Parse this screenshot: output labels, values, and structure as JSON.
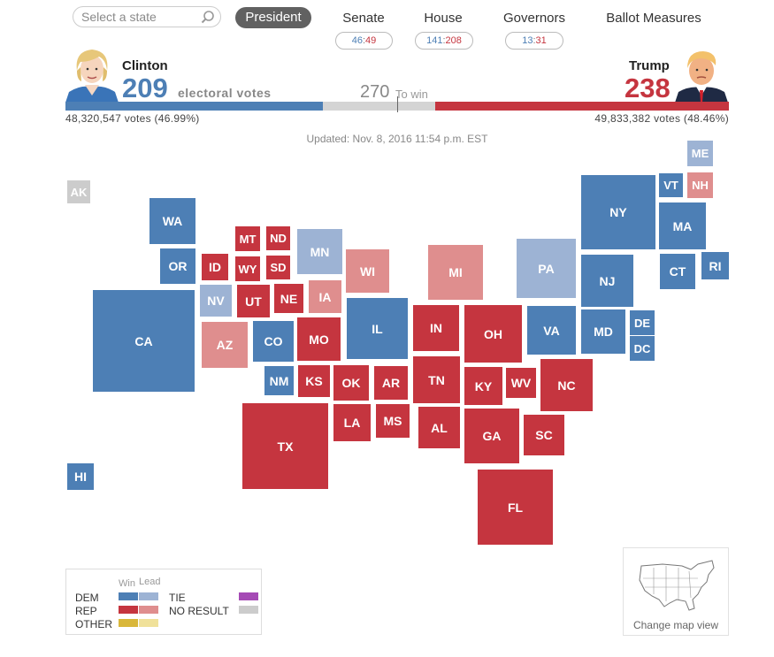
{
  "search": {
    "placeholder": "Select a state"
  },
  "tabs": {
    "president": "President",
    "senate": {
      "label": "Senate",
      "dem": "46",
      "rep": "49"
    },
    "house": {
      "label": "House",
      "dem": "141",
      "rep": "208"
    },
    "governors": {
      "label": "Governors",
      "dem": "13",
      "rep": "31"
    },
    "ballot": "Ballot Measures"
  },
  "clinton": {
    "name": "Clinton",
    "ev": "209",
    "popular": "48,320,547 votes (46.99%)"
  },
  "trump": {
    "name": "Trump",
    "ev": "238",
    "popular": "49,833,382 votes (48.46%)"
  },
  "ev_label": "electoral votes",
  "to_win": {
    "number": "270",
    "label": "To win"
  },
  "bar": {
    "dem_ev": 209,
    "rep_ev": 238,
    "total_ev": 538
  },
  "updated": "Updated: Nov. 8, 2016 11:54 p.m. EST",
  "colors": {
    "dem_win": "#4d7fb5",
    "dem_lead": "#9db3d4",
    "rep_win": "#c5353f",
    "rep_lead": "#df8e8e",
    "other_win": "#d9b73a",
    "other_lead": "#f0e19a",
    "tie": "#a54ab5",
    "no_result": "#cccccc"
  },
  "states": [
    {
      "abbr": "AK",
      "status": "no_result"
    },
    {
      "abbr": "HI",
      "status": "dem_win"
    },
    {
      "abbr": "WA",
      "status": "dem_win"
    },
    {
      "abbr": "OR",
      "status": "dem_win"
    },
    {
      "abbr": "CA",
      "status": "dem_win"
    },
    {
      "abbr": "NV",
      "status": "dem_lead"
    },
    {
      "abbr": "ID",
      "status": "rep_win"
    },
    {
      "abbr": "MT",
      "status": "rep_win"
    },
    {
      "abbr": "WY",
      "status": "rep_win"
    },
    {
      "abbr": "UT",
      "status": "rep_win"
    },
    {
      "abbr": "AZ",
      "status": "rep_lead"
    },
    {
      "abbr": "ND",
      "status": "rep_win"
    },
    {
      "abbr": "SD",
      "status": "rep_win"
    },
    {
      "abbr": "NE",
      "status": "rep_win"
    },
    {
      "abbr": "CO",
      "status": "dem_win"
    },
    {
      "abbr": "NM",
      "status": "dem_win"
    },
    {
      "abbr": "KS",
      "status": "rep_win"
    },
    {
      "abbr": "OK",
      "status": "rep_win"
    },
    {
      "abbr": "TX",
      "status": "rep_win"
    },
    {
      "abbr": "MN",
      "status": "dem_lead"
    },
    {
      "abbr": "IA",
      "status": "rep_lead"
    },
    {
      "abbr": "MO",
      "status": "rep_win"
    },
    {
      "abbr": "AR",
      "status": "rep_win"
    },
    {
      "abbr": "LA",
      "status": "rep_win"
    },
    {
      "abbr": "WI",
      "status": "rep_lead"
    },
    {
      "abbr": "IL",
      "status": "dem_win"
    },
    {
      "abbr": "MS",
      "status": "rep_win"
    },
    {
      "abbr": "MI",
      "status": "rep_lead"
    },
    {
      "abbr": "IN",
      "status": "rep_win"
    },
    {
      "abbr": "TN",
      "status": "rep_win"
    },
    {
      "abbr": "AL",
      "status": "rep_win"
    },
    {
      "abbr": "OH",
      "status": "rep_win"
    },
    {
      "abbr": "KY",
      "status": "rep_win"
    },
    {
      "abbr": "GA",
      "status": "rep_win"
    },
    {
      "abbr": "FL",
      "status": "rep_win"
    },
    {
      "abbr": "WV",
      "status": "rep_win"
    },
    {
      "abbr": "PA",
      "status": "dem_lead"
    },
    {
      "abbr": "VA",
      "status": "dem_win"
    },
    {
      "abbr": "NC",
      "status": "rep_win"
    },
    {
      "abbr": "SC",
      "status": "rep_win"
    },
    {
      "abbr": "NY",
      "status": "dem_win"
    },
    {
      "abbr": "NJ",
      "status": "dem_win"
    },
    {
      "abbr": "MD",
      "status": "dem_win"
    },
    {
      "abbr": "DE",
      "status": "dem_win"
    },
    {
      "abbr": "DC",
      "status": "dem_win"
    },
    {
      "abbr": "VT",
      "status": "dem_win"
    },
    {
      "abbr": "ME",
      "status": "dem_lead"
    },
    {
      "abbr": "NH",
      "status": "rep_lead"
    },
    {
      "abbr": "MA",
      "status": "dem_win"
    },
    {
      "abbr": "CT",
      "status": "dem_win"
    },
    {
      "abbr": "RI",
      "status": "dem_win"
    }
  ],
  "legend": {
    "win": "Win",
    "lead": "Lead",
    "dem": "DEM",
    "rep": "REP",
    "other": "OTHER",
    "tie": "TIE",
    "no_result": "NO RESULT"
  },
  "change_view": "Change map view"
}
